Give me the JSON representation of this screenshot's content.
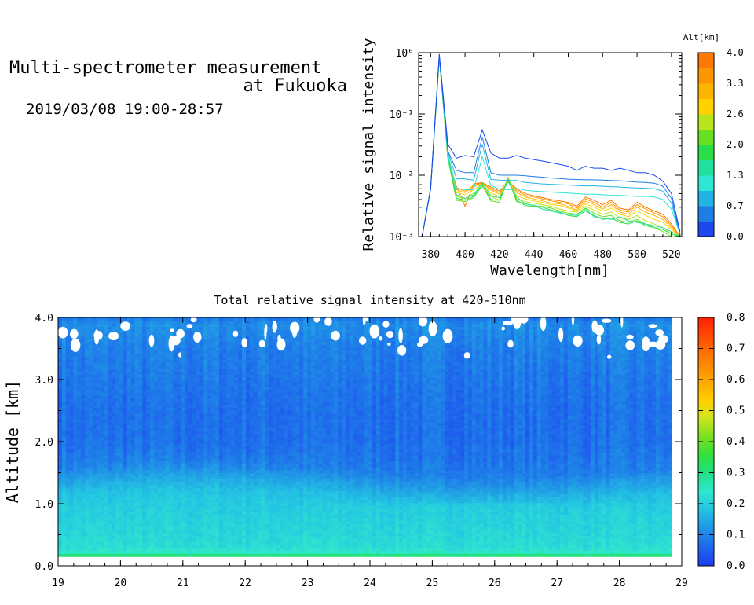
{
  "header": {
    "title_line1": "Multi-spectrometer measurement",
    "title_line2": "at Fukuoka",
    "subtitle": "2019/03/08 19:00-28:57"
  },
  "chart_data": [
    {
      "type": "line",
      "name": "spectra",
      "xlabel": "Wavelength[nm]",
      "ylabel": "Relative signal intensity",
      "xlim": [
        373,
        526
      ],
      "ylim": [
        0.001,
        1
      ],
      "yscale": "log",
      "x_ticks": [
        380,
        400,
        420,
        440,
        460,
        480,
        500,
        520
      ],
      "y_ticks": [
        "10⁻³",
        "10⁻²",
        "10⁻¹",
        "10⁰"
      ],
      "y_tick_values": [
        0.001,
        0.01,
        0.1,
        1
      ],
      "x": [
        375,
        380,
        385,
        390,
        395,
        400,
        405,
        410,
        415,
        420,
        425,
        430,
        435,
        440,
        445,
        450,
        455,
        460,
        465,
        470,
        475,
        480,
        485,
        490,
        495,
        500,
        505,
        510,
        515,
        520,
        525
      ],
      "colorbar": {
        "title": "Alt[km]",
        "tick_labels": [
          "0.0",
          "0.7",
          "1.3",
          "2.0",
          "2.6",
          "3.3",
          "4.0"
        ],
        "colors": [
          "#1c48ee",
          "#1e7ee6",
          "#22b4e4",
          "#2ee6d4",
          "#22e0a0",
          "#2ade4a",
          "#66e020",
          "#b8e41c",
          "#ffd200",
          "#ffb400",
          "#ff9600",
          "#ff7800"
        ]
      },
      "series": [
        {
          "alt_km": 0.0,
          "color": "#1c48ee",
          "values": [
            0.001,
            0.006,
            0.95,
            0.032,
            0.019,
            0.021,
            0.02,
            0.055,
            0.023,
            0.019,
            0.019,
            0.021,
            0.019,
            0.018,
            0.017,
            0.016,
            0.015,
            0.014,
            0.012,
            0.014,
            0.013,
            0.013,
            0.012,
            0.013,
            0.012,
            0.011,
            0.011,
            0.01,
            0.008,
            0.005,
            0.0012
          ]
        },
        {
          "alt_km": 0.3,
          "color": "#1e7ee6",
          "values": [
            0.001,
            0.006,
            0.9,
            0.025,
            0.012,
            0.011,
            0.011,
            0.042,
            0.011,
            0.01,
            0.01,
            0.01,
            0.0098,
            0.0095,
            0.0093,
            0.009,
            0.0088,
            0.0086,
            0.0085,
            0.0084,
            0.0084,
            0.0083,
            0.0082,
            0.0081,
            0.0079,
            0.0077,
            0.0076,
            0.0074,
            0.0066,
            0.0042,
            0.0011
          ]
        },
        {
          "alt_km": 0.7,
          "color": "#22b4e4",
          "values": [
            0.001,
            0.006,
            0.88,
            0.024,
            0.0088,
            0.0087,
            0.0083,
            0.032,
            0.0085,
            0.0083,
            0.0082,
            0.0082,
            0.0076,
            0.0074,
            0.0072,
            0.0071,
            0.007,
            0.0069,
            0.0068,
            0.0067,
            0.0067,
            0.0066,
            0.0065,
            0.0064,
            0.0063,
            0.0062,
            0.0061,
            0.006,
            0.0055,
            0.0035,
            0.0011
          ]
        },
        {
          "alt_km": 1.1,
          "color": "#2ee6d4",
          "values": [
            0.001,
            0.006,
            0.86,
            0.022,
            0.0062,
            0.0058,
            0.0058,
            0.02,
            0.0068,
            0.0059,
            0.0058,
            0.0061,
            0.0057,
            0.0055,
            0.0054,
            0.0053,
            0.0052,
            0.0051,
            0.005,
            0.0049,
            0.0049,
            0.0048,
            0.0047,
            0.0047,
            0.0046,
            0.0045,
            0.0045,
            0.0044,
            0.004,
            0.0028,
            0.0011
          ]
        },
        {
          "alt_km": 1.5,
          "color": "#22e0a0",
          "values": [
            0.001,
            0.006,
            0.85,
            0.02,
            0.0048,
            0.0042,
            0.0048,
            0.0075,
            0.0046,
            0.0043,
            0.0078,
            0.0044,
            0.0034,
            0.0032,
            0.0028,
            0.0026,
            0.0024,
            0.0023,
            0.0022,
            0.0028,
            0.0021,
            0.002,
            0.0019,
            0.0021,
            0.0018,
            0.0017,
            0.0016,
            0.0015,
            0.0014,
            0.0012,
            0.001
          ]
        },
        {
          "alt_km": 1.9,
          "color": "#2ade4a",
          "values": [
            0.001,
            0.006,
            0.84,
            0.02,
            0.0042,
            0.0039,
            0.0045,
            0.007,
            0.004,
            0.0039,
            0.0085,
            0.0039,
            0.0032,
            0.0031,
            0.003,
            0.0027,
            0.0025,
            0.0022,
            0.0021,
            0.0026,
            0.0022,
            0.0019,
            0.002,
            0.0017,
            0.0016,
            0.0018,
            0.0015,
            0.0014,
            0.0013,
            0.0011,
            0.001
          ]
        },
        {
          "alt_km": 2.3,
          "color": "#66e020",
          "values": [
            0.001,
            0.006,
            0.84,
            0.019,
            0.0039,
            0.0037,
            0.0043,
            0.0068,
            0.0038,
            0.0036,
            0.009,
            0.0037,
            0.0034,
            0.0032,
            0.0031,
            0.0029,
            0.0026,
            0.0024,
            0.0023,
            0.0029,
            0.0024,
            0.0021,
            0.0022,
            0.0018,
            0.0017,
            0.0019,
            0.0016,
            0.0014,
            0.0012,
            0.001,
            0.001
          ]
        },
        {
          "alt_km": 2.7,
          "color": "#b8e41c",
          "values": [
            0.001,
            0.006,
            0.84,
            0.019,
            0.0045,
            0.0041,
            0.0051,
            0.0066,
            0.0045,
            0.0039,
            0.0092,
            0.0041,
            0.0037,
            0.0035,
            0.0033,
            0.0031,
            0.0028,
            0.0026,
            0.0025,
            0.0031,
            0.0027,
            0.0023,
            0.0025,
            0.002,
            0.0019,
            0.0022,
            0.0018,
            0.0016,
            0.0014,
            0.0011,
            0.001
          ]
        },
        {
          "alt_km": 3.1,
          "color": "#ffd200",
          "values": [
            0.001,
            0.006,
            0.84,
            0.019,
            0.0052,
            0.0048,
            0.0058,
            0.0072,
            0.0051,
            0.0045,
            0.0088,
            0.0046,
            0.0041,
            0.0038,
            0.0036,
            0.0033,
            0.0032,
            0.0029,
            0.0026,
            0.0034,
            0.003,
            0.0026,
            0.0029,
            0.0023,
            0.0021,
            0.0026,
            0.0022,
            0.0019,
            0.0017,
            0.0013,
            0.001
          ]
        },
        {
          "alt_km": 3.4,
          "color": "#ffb400",
          "values": [
            0.001,
            0.006,
            0.84,
            0.019,
            0.0058,
            0.0052,
            0.0064,
            0.0074,
            0.0057,
            0.0049,
            0.0085,
            0.0052,
            0.0044,
            0.0041,
            0.0038,
            0.0035,
            0.0034,
            0.0031,
            0.0027,
            0.0038,
            0.0033,
            0.0028,
            0.0033,
            0.0025,
            0.0023,
            0.003,
            0.0025,
            0.0022,
            0.0019,
            0.0014,
            0.001
          ]
        },
        {
          "alt_km": 3.7,
          "color": "#ff9600",
          "values": [
            0.001,
            0.006,
            0.84,
            0.019,
            0.0062,
            0.0055,
            0.0068,
            0.0075,
            0.006,
            0.0052,
            0.0082,
            0.0056,
            0.0047,
            0.0044,
            0.0041,
            0.0038,
            0.0036,
            0.0034,
            0.0029,
            0.0041,
            0.0036,
            0.003,
            0.0036,
            0.0027,
            0.0025,
            0.0033,
            0.0028,
            0.0024,
            0.0021,
            0.0015,
            0.001
          ]
        },
        {
          "alt_km": 4.0,
          "color": "#ff7800",
          "values": [
            0.001,
            0.006,
            0.84,
            0.019,
            0.0066,
            0.0031,
            0.0072,
            0.0076,
            0.0064,
            0.0055,
            0.0079,
            0.006,
            0.005,
            0.0046,
            0.0043,
            0.004,
            0.0038,
            0.0036,
            0.0031,
            0.0044,
            0.0039,
            0.0033,
            0.0039,
            0.0029,
            0.0027,
            0.0036,
            0.003,
            0.0026,
            0.0023,
            0.0016,
            0.001
          ]
        }
      ]
    },
    {
      "type": "heatmap",
      "name": "time-altitude",
      "title": "Total relative signal intensity at 420-510nm",
      "xlabel": "",
      "ylabel": "Altitude [km]",
      "xlim": [
        19,
        29
      ],
      "ylim": [
        0,
        4
      ],
      "data_xlim": [
        19,
        28.83
      ],
      "data_ylim": [
        0.15,
        4.0
      ],
      "x_ticks": [
        19,
        20,
        21,
        22,
        23,
        24,
        25,
        26,
        27,
        28,
        29
      ],
      "y_ticks": [
        "0.0",
        "1.0",
        "2.0",
        "3.0",
        "4.0"
      ],
      "y_tick_values": [
        0,
        1,
        2,
        3,
        4
      ],
      "altitude_profile": {
        "alt_km": [
          0.15,
          0.2,
          0.3,
          0.5,
          0.8,
          1.0,
          1.2,
          1.4,
          1.6,
          2.0,
          2.5,
          3.0,
          3.5,
          3.9,
          4.0
        ],
        "value": [
          0.36,
          0.25,
          0.22,
          0.21,
          0.2,
          0.19,
          0.17,
          0.13,
          0.09,
          0.07,
          0.07,
          0.08,
          0.09,
          0.11,
          0.08
        ]
      },
      "colorbar": {
        "tick_labels": [
          "0.0",
          "0.1",
          "0.2",
          "0.3",
          "0.4",
          "0.5",
          "0.6",
          "0.7",
          "0.8"
        ],
        "range": [
          0,
          0.8
        ]
      }
    }
  ]
}
